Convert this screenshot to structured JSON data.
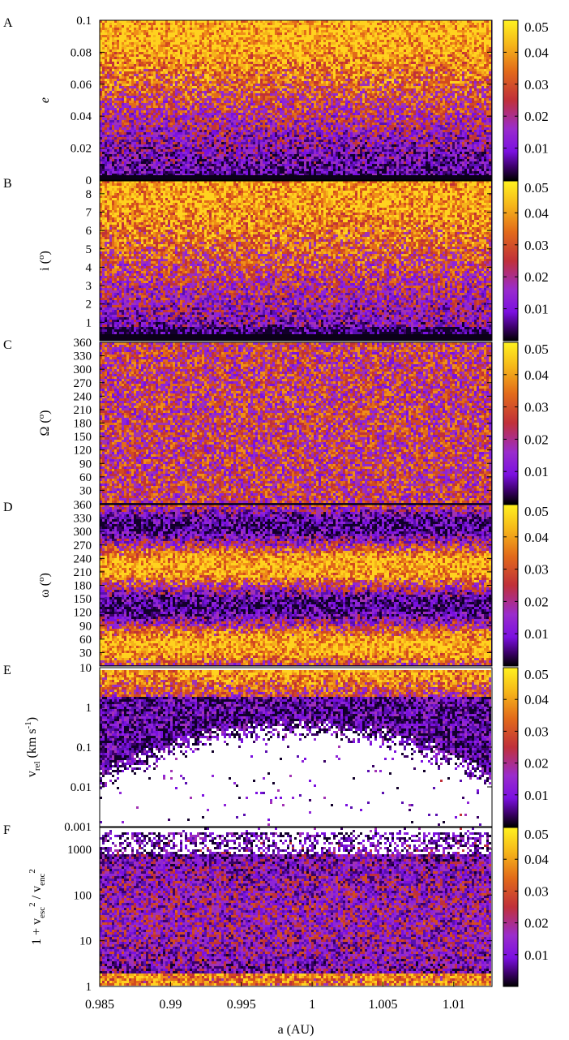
{
  "chart_data": {
    "type": "scatter",
    "x_axis": {
      "label": "a (AU)",
      "range": [
        0.985,
        1.0127
      ],
      "ticks": [
        0.985,
        0.99,
        0.995,
        1,
        1.005,
        1.01
      ],
      "tick_labels": [
        "0.985",
        "0.99",
        "0.995",
        "1",
        "1.005",
        "1.01"
      ]
    },
    "colorbar": {
      "tick_labels": [
        "0.01",
        "0.02",
        "0.03",
        "0.04",
        "0.05"
      ],
      "ticks": [
        0.01,
        0.02,
        0.03,
        0.04,
        0.05
      ],
      "range": [
        0,
        0.05
      ],
      "colors": [
        "#000000",
        "#3a0066",
        "#7b10e0",
        "#9a2ccc",
        "#c0303a",
        "#e26a1a",
        "#f5b31a",
        "#fff21f"
      ]
    },
    "panels": [
      {
        "letter": "A",
        "ylabel": "e",
        "ylim": [
          0,
          0.1
        ],
        "scale": "linear",
        "y_tick_labels": [
          "0",
          "0.02",
          "0.04",
          "0.06",
          "0.08",
          "0.1"
        ],
        "y_ticks": [
          0,
          0.02,
          0.04,
          0.06,
          0.08,
          0.1
        ],
        "colorbar_top_label": "0.05"
      },
      {
        "letter": "B",
        "ylabel": "i (o)",
        "ylim": [
          0,
          8.7
        ],
        "scale": "linear",
        "y_tick_labels": [
          "1",
          "2",
          "3",
          "4",
          "5",
          "6",
          "7",
          "8"
        ],
        "y_ticks": [
          1,
          2,
          3,
          4,
          5,
          6,
          7,
          8
        ],
        "colorbar_top_label": "0.05"
      },
      {
        "letter": "C",
        "ylabel": "Ω (o)",
        "ylim": [
          0,
          360
        ],
        "scale": "linear",
        "y_tick_labels": [
          "30",
          "60",
          "90",
          "120",
          "150",
          "180",
          "210",
          "240",
          "270",
          "300",
          "330",
          "360"
        ],
        "y_ticks": [
          30,
          60,
          90,
          120,
          150,
          180,
          210,
          240,
          270,
          300,
          330,
          360
        ],
        "colorbar_top_label": "0.05"
      },
      {
        "letter": "D",
        "ylabel": "ω (o)",
        "ylim": [
          0,
          360
        ],
        "scale": "linear",
        "y_tick_labels": [
          "30",
          "60",
          "90",
          "120",
          "150",
          "180",
          "210",
          "240",
          "270",
          "300",
          "330",
          "360"
        ],
        "y_ticks": [
          30,
          60,
          90,
          120,
          150,
          180,
          210,
          240,
          270,
          300,
          330,
          360
        ],
        "colorbar_top_label": "0.05"
      },
      {
        "letter": "E",
        "ylabel": "v_rel (km s^-1)",
        "ylim": [
          0.001,
          10
        ],
        "scale": "log",
        "y_tick_labels": [
          "0.001",
          "0.01",
          "0.1",
          "1",
          "10"
        ],
        "y_ticks": [
          0.001,
          0.01,
          0.1,
          1,
          10
        ],
        "colorbar_top_label": "0.05"
      },
      {
        "letter": "F",
        "ylabel": "1 + v_esc^2 / v_enc^2",
        "ylim": [
          1,
          3000
        ],
        "scale": "log",
        "y_tick_labels": [
          "1",
          "10",
          "100",
          "1000"
        ],
        "y_ticks": [
          1,
          10,
          100,
          1000
        ],
        "colorbar_top_label": "0.05"
      }
    ]
  }
}
